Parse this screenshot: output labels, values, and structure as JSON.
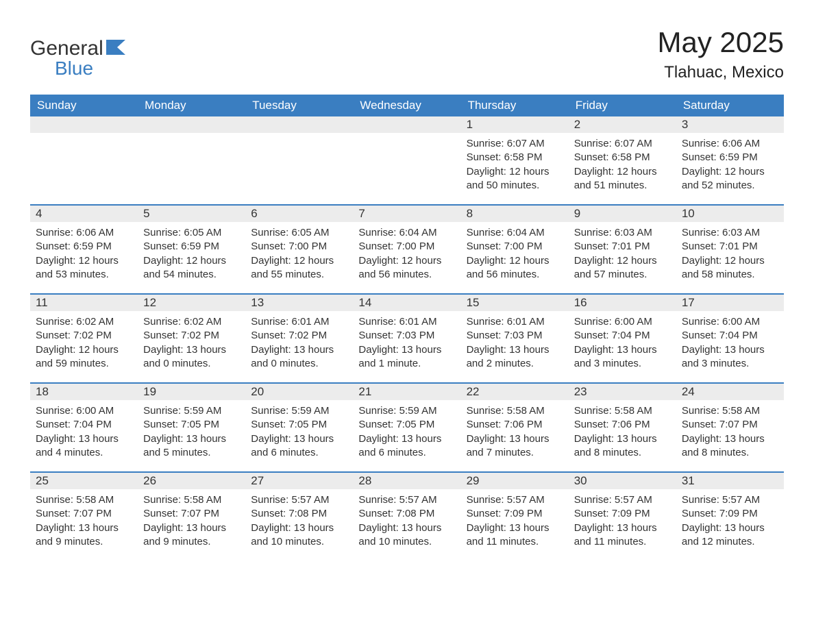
{
  "brand": {
    "word1": "General",
    "word2": "Blue",
    "icon_color": "#3a7ec1",
    "text_color": "#333333"
  },
  "header": {
    "title": "May 2025",
    "location": "Tlahuac, Mexico"
  },
  "colors": {
    "header_bg": "#3a7ec1",
    "header_text": "#ffffff",
    "row_divider": "#3a7ec1",
    "daynum_bg": "#ececec",
    "body_text": "#333333",
    "background": "#ffffff"
  },
  "weekdays": [
    "Sunday",
    "Monday",
    "Tuesday",
    "Wednesday",
    "Thursday",
    "Friday",
    "Saturday"
  ],
  "weeks": [
    [
      null,
      null,
      null,
      null,
      {
        "day": "1",
        "sunrise": "Sunrise: 6:07 AM",
        "sunset": "Sunset: 6:58 PM",
        "daylight1": "Daylight: 12 hours",
        "daylight2": "and 50 minutes."
      },
      {
        "day": "2",
        "sunrise": "Sunrise: 6:07 AM",
        "sunset": "Sunset: 6:58 PM",
        "daylight1": "Daylight: 12 hours",
        "daylight2": "and 51 minutes."
      },
      {
        "day": "3",
        "sunrise": "Sunrise: 6:06 AM",
        "sunset": "Sunset: 6:59 PM",
        "daylight1": "Daylight: 12 hours",
        "daylight2": "and 52 minutes."
      }
    ],
    [
      {
        "day": "4",
        "sunrise": "Sunrise: 6:06 AM",
        "sunset": "Sunset: 6:59 PM",
        "daylight1": "Daylight: 12 hours",
        "daylight2": "and 53 minutes."
      },
      {
        "day": "5",
        "sunrise": "Sunrise: 6:05 AM",
        "sunset": "Sunset: 6:59 PM",
        "daylight1": "Daylight: 12 hours",
        "daylight2": "and 54 minutes."
      },
      {
        "day": "6",
        "sunrise": "Sunrise: 6:05 AM",
        "sunset": "Sunset: 7:00 PM",
        "daylight1": "Daylight: 12 hours",
        "daylight2": "and 55 minutes."
      },
      {
        "day": "7",
        "sunrise": "Sunrise: 6:04 AM",
        "sunset": "Sunset: 7:00 PM",
        "daylight1": "Daylight: 12 hours",
        "daylight2": "and 56 minutes."
      },
      {
        "day": "8",
        "sunrise": "Sunrise: 6:04 AM",
        "sunset": "Sunset: 7:00 PM",
        "daylight1": "Daylight: 12 hours",
        "daylight2": "and 56 minutes."
      },
      {
        "day": "9",
        "sunrise": "Sunrise: 6:03 AM",
        "sunset": "Sunset: 7:01 PM",
        "daylight1": "Daylight: 12 hours",
        "daylight2": "and 57 minutes."
      },
      {
        "day": "10",
        "sunrise": "Sunrise: 6:03 AM",
        "sunset": "Sunset: 7:01 PM",
        "daylight1": "Daylight: 12 hours",
        "daylight2": "and 58 minutes."
      }
    ],
    [
      {
        "day": "11",
        "sunrise": "Sunrise: 6:02 AM",
        "sunset": "Sunset: 7:02 PM",
        "daylight1": "Daylight: 12 hours",
        "daylight2": "and 59 minutes."
      },
      {
        "day": "12",
        "sunrise": "Sunrise: 6:02 AM",
        "sunset": "Sunset: 7:02 PM",
        "daylight1": "Daylight: 13 hours",
        "daylight2": "and 0 minutes."
      },
      {
        "day": "13",
        "sunrise": "Sunrise: 6:01 AM",
        "sunset": "Sunset: 7:02 PM",
        "daylight1": "Daylight: 13 hours",
        "daylight2": "and 0 minutes."
      },
      {
        "day": "14",
        "sunrise": "Sunrise: 6:01 AM",
        "sunset": "Sunset: 7:03 PM",
        "daylight1": "Daylight: 13 hours",
        "daylight2": "and 1 minute."
      },
      {
        "day": "15",
        "sunrise": "Sunrise: 6:01 AM",
        "sunset": "Sunset: 7:03 PM",
        "daylight1": "Daylight: 13 hours",
        "daylight2": "and 2 minutes."
      },
      {
        "day": "16",
        "sunrise": "Sunrise: 6:00 AM",
        "sunset": "Sunset: 7:04 PM",
        "daylight1": "Daylight: 13 hours",
        "daylight2": "and 3 minutes."
      },
      {
        "day": "17",
        "sunrise": "Sunrise: 6:00 AM",
        "sunset": "Sunset: 7:04 PM",
        "daylight1": "Daylight: 13 hours",
        "daylight2": "and 3 minutes."
      }
    ],
    [
      {
        "day": "18",
        "sunrise": "Sunrise: 6:00 AM",
        "sunset": "Sunset: 7:04 PM",
        "daylight1": "Daylight: 13 hours",
        "daylight2": "and 4 minutes."
      },
      {
        "day": "19",
        "sunrise": "Sunrise: 5:59 AM",
        "sunset": "Sunset: 7:05 PM",
        "daylight1": "Daylight: 13 hours",
        "daylight2": "and 5 minutes."
      },
      {
        "day": "20",
        "sunrise": "Sunrise: 5:59 AM",
        "sunset": "Sunset: 7:05 PM",
        "daylight1": "Daylight: 13 hours",
        "daylight2": "and 6 minutes."
      },
      {
        "day": "21",
        "sunrise": "Sunrise: 5:59 AM",
        "sunset": "Sunset: 7:05 PM",
        "daylight1": "Daylight: 13 hours",
        "daylight2": "and 6 minutes."
      },
      {
        "day": "22",
        "sunrise": "Sunrise: 5:58 AM",
        "sunset": "Sunset: 7:06 PM",
        "daylight1": "Daylight: 13 hours",
        "daylight2": "and 7 minutes."
      },
      {
        "day": "23",
        "sunrise": "Sunrise: 5:58 AM",
        "sunset": "Sunset: 7:06 PM",
        "daylight1": "Daylight: 13 hours",
        "daylight2": "and 8 minutes."
      },
      {
        "day": "24",
        "sunrise": "Sunrise: 5:58 AM",
        "sunset": "Sunset: 7:07 PM",
        "daylight1": "Daylight: 13 hours",
        "daylight2": "and 8 minutes."
      }
    ],
    [
      {
        "day": "25",
        "sunrise": "Sunrise: 5:58 AM",
        "sunset": "Sunset: 7:07 PM",
        "daylight1": "Daylight: 13 hours",
        "daylight2": "and 9 minutes."
      },
      {
        "day": "26",
        "sunrise": "Sunrise: 5:58 AM",
        "sunset": "Sunset: 7:07 PM",
        "daylight1": "Daylight: 13 hours",
        "daylight2": "and 9 minutes."
      },
      {
        "day": "27",
        "sunrise": "Sunrise: 5:57 AM",
        "sunset": "Sunset: 7:08 PM",
        "daylight1": "Daylight: 13 hours",
        "daylight2": "and 10 minutes."
      },
      {
        "day": "28",
        "sunrise": "Sunrise: 5:57 AM",
        "sunset": "Sunset: 7:08 PM",
        "daylight1": "Daylight: 13 hours",
        "daylight2": "and 10 minutes."
      },
      {
        "day": "29",
        "sunrise": "Sunrise: 5:57 AM",
        "sunset": "Sunset: 7:09 PM",
        "daylight1": "Daylight: 13 hours",
        "daylight2": "and 11 minutes."
      },
      {
        "day": "30",
        "sunrise": "Sunrise: 5:57 AM",
        "sunset": "Sunset: 7:09 PM",
        "daylight1": "Daylight: 13 hours",
        "daylight2": "and 11 minutes."
      },
      {
        "day": "31",
        "sunrise": "Sunrise: 5:57 AM",
        "sunset": "Sunset: 7:09 PM",
        "daylight1": "Daylight: 13 hours",
        "daylight2": "and 12 minutes."
      }
    ]
  ]
}
